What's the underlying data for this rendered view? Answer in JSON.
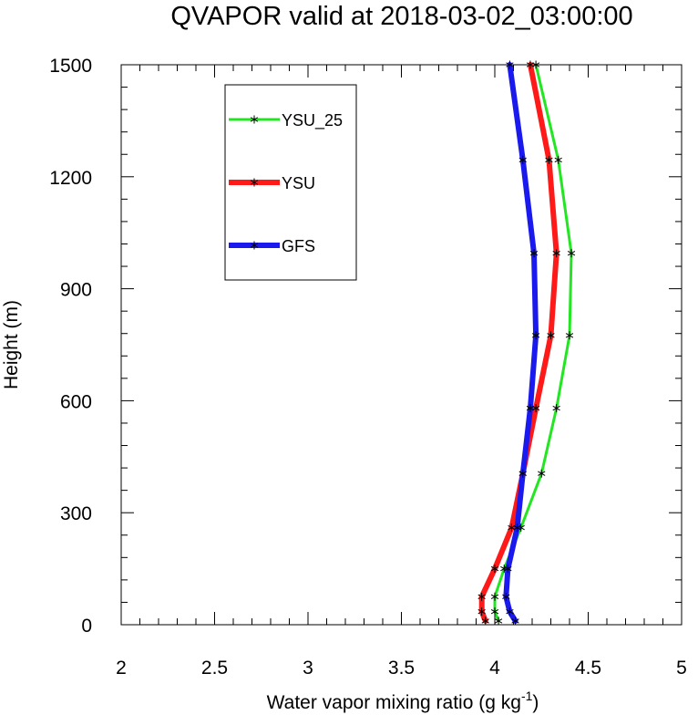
{
  "chart_data": {
    "type": "line",
    "title": "QVAPOR valid at 2018-03-02_03:00:00",
    "xlabel": "Water vapor mixing ratio (g kg",
    "xlabel_sup": "-1",
    "xlabel_end": ")",
    "ylabel": "Height (m)",
    "xlim": [
      2,
      5
    ],
    "ylim": [
      0,
      1500
    ],
    "xticks": [
      "2",
      "2.5",
      "3",
      "3.5",
      "4",
      "4.5",
      "5"
    ],
    "yticks": [
      "0",
      "300",
      "600",
      "900",
      "1200",
      "1500"
    ],
    "grid": false,
    "legend_position": "top-left",
    "series": [
      {
        "name": "YSU_25",
        "color": "#22e622",
        "marker": "asterisk",
        "points": [
          [
            4.02,
            10
          ],
          [
            4.0,
            35
          ],
          [
            4.0,
            75
          ],
          [
            4.05,
            150
          ],
          [
            4.14,
            260
          ],
          [
            4.25,
            405
          ],
          [
            4.33,
            580
          ],
          [
            4.4,
            775
          ],
          [
            4.41,
            995
          ],
          [
            4.34,
            1245
          ],
          [
            4.22,
            1500
          ]
        ]
      },
      {
        "name": "YSU",
        "color": "#ff1a1a",
        "marker": "asterisk",
        "points": [
          [
            3.95,
            10
          ],
          [
            3.93,
            35
          ],
          [
            3.93,
            75
          ],
          [
            4.0,
            150
          ],
          [
            4.09,
            260
          ],
          [
            4.15,
            405
          ],
          [
            4.22,
            580
          ],
          [
            4.3,
            775
          ],
          [
            4.33,
            995
          ],
          [
            4.29,
            1245
          ],
          [
            4.19,
            1500
          ]
        ]
      },
      {
        "name": "GFS",
        "color": "#1a1aee",
        "marker": "asterisk",
        "points": [
          [
            4.11,
            10
          ],
          [
            4.08,
            35
          ],
          [
            4.06,
            75
          ],
          [
            4.07,
            150
          ],
          [
            4.12,
            260
          ],
          [
            4.15,
            405
          ],
          [
            4.19,
            580
          ],
          [
            4.22,
            775
          ],
          [
            4.21,
            995
          ],
          [
            4.15,
            1245
          ],
          [
            4.08,
            1500
          ]
        ]
      }
    ]
  }
}
